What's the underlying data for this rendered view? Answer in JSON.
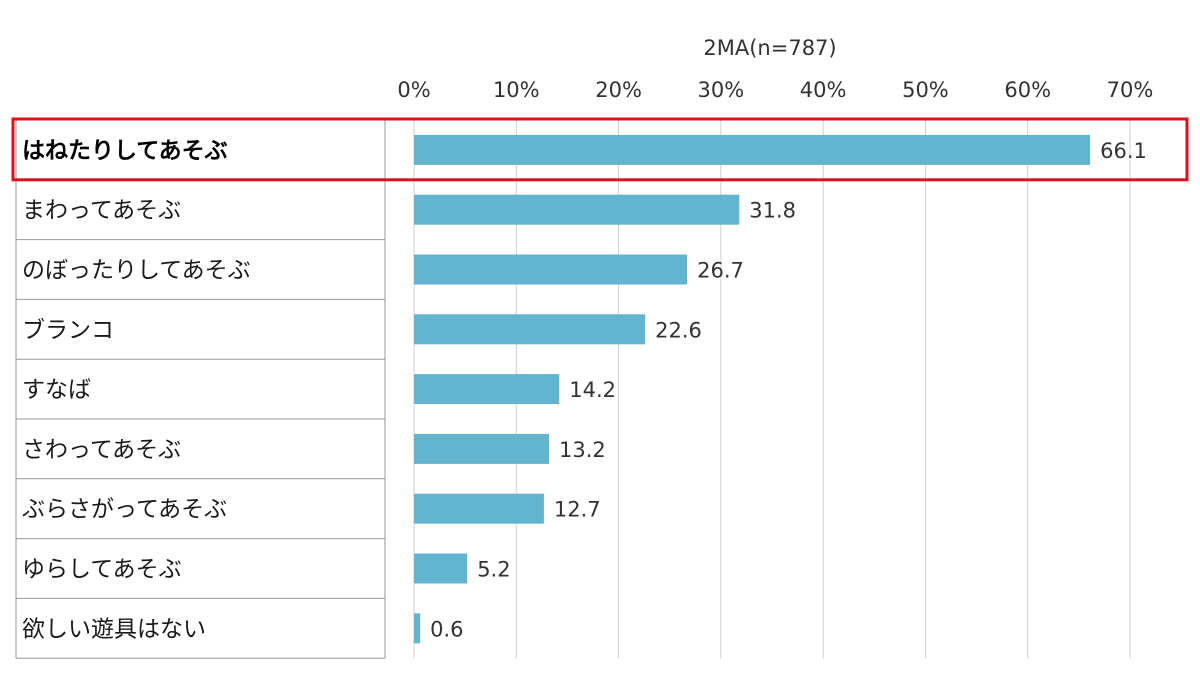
{
  "chart_data": {
    "type": "bar",
    "orientation": "horizontal",
    "subtitle": "2MA(n=787)",
    "categories": [
      "はねたりしてあそぶ",
      "まわってあそぶ",
      "のぼったりしてあそぶ",
      "ブランコ",
      "すなば",
      "さわってあそぶ",
      "ぶらさがってあそぶ",
      "ゆらしてあそぶ",
      "欲しい遊具はない"
    ],
    "values": [
      66.1,
      31.8,
      26.7,
      22.6,
      14.2,
      13.2,
      12.7,
      5.2,
      0.6
    ],
    "value_labels": [
      "66.1",
      "31.8",
      "26.7",
      "22.6",
      "14.2",
      "13.2",
      "12.7",
      "5.2",
      "0.6"
    ],
    "xlim": [
      0,
      70
    ],
    "tick_labels": [
      "0%",
      "10%",
      "20%",
      "30%",
      "40%",
      "50%",
      "60%",
      "70%"
    ],
    "highlighted_category": "はねたりしてあそぶ",
    "grid": true,
    "legend": "none"
  },
  "colors": {
    "bar": "#63b5cf",
    "grid": "#d0d0d0",
    "row_border": "#999999",
    "highlight_border": "#d9121b"
  }
}
